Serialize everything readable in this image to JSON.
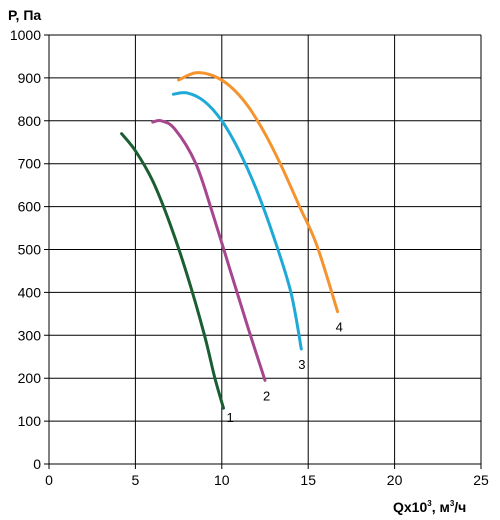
{
  "chart_data": {
    "type": "line",
    "title": "",
    "ylabel": "P, Па",
    "xlabel_prefix": "Qx10",
    "xlabel_exp": "3",
    "xlabel_units_prefix": ", м",
    "xlabel_units_exp": "3",
    "xlabel_units_suffix": "/ч",
    "xlim": [
      0,
      25
    ],
    "ylim": [
      0,
      1000
    ],
    "x_ticks": [
      0,
      5,
      10,
      15,
      20,
      25
    ],
    "y_ticks": [
      0,
      100,
      200,
      300,
      400,
      500,
      600,
      700,
      800,
      900,
      1000
    ],
    "grid": true,
    "series": [
      {
        "name": "1",
        "color": "#1a5e32",
        "points": [
          [
            4.2,
            770
          ],
          [
            5.0,
            730
          ],
          [
            6.0,
            660
          ],
          [
            7.0,
            560
          ],
          [
            8.0,
            440
          ],
          [
            9.0,
            300
          ],
          [
            9.6,
            200
          ],
          [
            10.1,
            130
          ]
        ]
      },
      {
        "name": "2",
        "color": "#a6468f",
        "points": [
          [
            6.0,
            797
          ],
          [
            6.5,
            800
          ],
          [
            7.3,
            780
          ],
          [
            8.5,
            700
          ],
          [
            9.5,
            580
          ],
          [
            10.5,
            450
          ],
          [
            11.5,
            320
          ],
          [
            12.5,
            195
          ]
        ]
      },
      {
        "name": "3",
        "color": "#1fa9d6",
        "points": [
          [
            7.2,
            862
          ],
          [
            8.0,
            865
          ],
          [
            9.0,
            845
          ],
          [
            10.0,
            800
          ],
          [
            11.0,
            730
          ],
          [
            12.0,
            640
          ],
          [
            13.0,
            530
          ],
          [
            14.0,
            400
          ],
          [
            14.6,
            268
          ]
        ]
      },
      {
        "name": "4",
        "color": "#f5932e",
        "points": [
          [
            7.5,
            895
          ],
          [
            8.5,
            912
          ],
          [
            9.5,
            905
          ],
          [
            10.5,
            880
          ],
          [
            11.5,
            835
          ],
          [
            12.5,
            770
          ],
          [
            13.5,
            690
          ],
          [
            14.5,
            600
          ],
          [
            15.5,
            510
          ],
          [
            16.7,
            355
          ]
        ]
      }
    ]
  }
}
